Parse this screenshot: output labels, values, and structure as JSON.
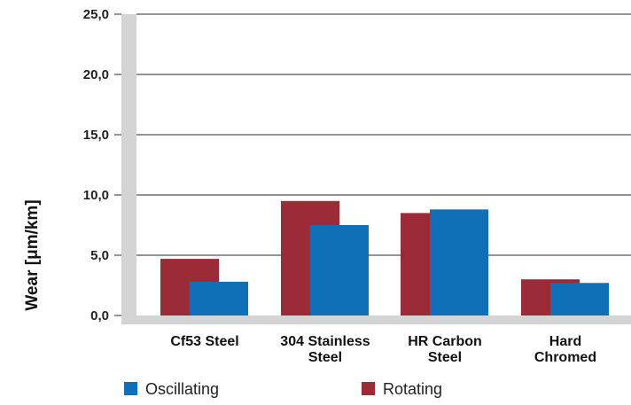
{
  "chart_data": {
    "type": "bar",
    "categories": [
      [
        "Cf53 Steel"
      ],
      [
        "304 Stainless",
        "Steel"
      ],
      [
        "HR Carbon",
        "Steel"
      ],
      [
        "Hard",
        "Chromed"
      ]
    ],
    "series": [
      {
        "name": "Rotating",
        "color": "#9b2b37",
        "values": [
          4.7,
          9.5,
          8.5,
          3.0
        ]
      },
      {
        "name": "Oscillating",
        "color": "#0f70b7",
        "values": [
          2.8,
          7.5,
          8.8,
          2.7
        ]
      }
    ],
    "yticks": [
      "0,0",
      "5,0",
      "10,0",
      "15,0",
      "20,0",
      "25,0"
    ],
    "ylim": [
      0,
      25
    ],
    "ylabel": "Wear [μm/km]",
    "xlabel": "",
    "title": "",
    "grid": true,
    "legend": {
      "position": "bottom",
      "order": [
        "Oscillating",
        "Rotating"
      ]
    }
  }
}
